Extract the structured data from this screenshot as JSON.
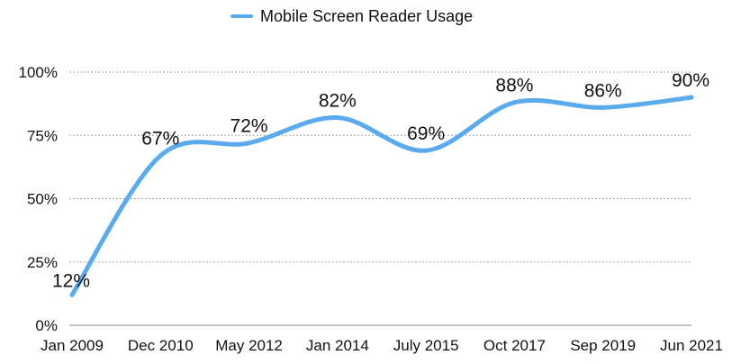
{
  "chart_data": {
    "type": "line",
    "title": "",
    "xlabel": "",
    "ylabel": "",
    "categories": [
      "Jan 2009",
      "Dec 2010",
      "May 2012",
      "Jan 2014",
      "July 2015",
      "Oct 2017",
      "Sep 2019",
      "Jun 2021"
    ],
    "series": [
      {
        "name": "Mobile Screen Reader Usage",
        "color": "#5aabed",
        "values": [
          12,
          67,
          72,
          82,
          69,
          88,
          86,
          90
        ],
        "data_labels": [
          "12%",
          "67%",
          "72%",
          "82%",
          "69%",
          "88%",
          "86%",
          "90%"
        ]
      }
    ],
    "ylim": [
      0,
      100
    ],
    "yticks": [
      0,
      25,
      50,
      75,
      100
    ],
    "ytick_labels": [
      "0%",
      "25%",
      "50%",
      "75%",
      "100%"
    ],
    "grid": true,
    "smooth": true,
    "legend_position": "top-center"
  }
}
